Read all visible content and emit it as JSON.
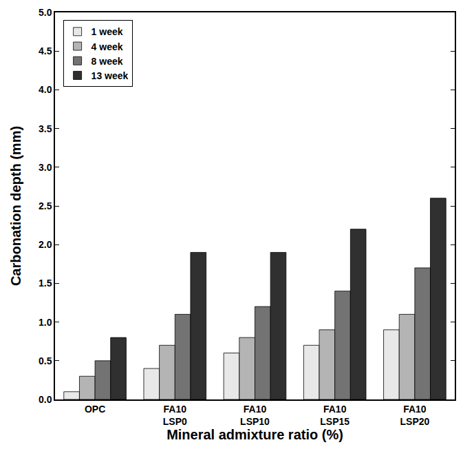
{
  "chart_data": {
    "type": "bar",
    "x_label": "Mineral admixture ratio (%)",
    "y_label": "Carbonation depth (mm)",
    "categories": [
      "OPC",
      "FA10\nLSP0",
      "FA10\nLSP10",
      "FA10\nLSP15",
      "FA10\nLSP20"
    ],
    "series": [
      {
        "name": "1 week",
        "color": "#e8e8e8",
        "values": [
          0.1,
          0.4,
          0.6,
          0.7,
          0.9
        ]
      },
      {
        "name": "4 week",
        "color": "#b4b4b4",
        "values": [
          0.3,
          0.7,
          0.8,
          0.9,
          1.1
        ]
      },
      {
        "name": "8 week",
        "color": "#737373",
        "values": [
          0.5,
          1.1,
          1.2,
          1.4,
          1.7
        ]
      },
      {
        "name": "13 week",
        "color": "#303030",
        "values": [
          0.8,
          1.9,
          1.9,
          2.2,
          2.6
        ]
      }
    ],
    "ylim": [
      0,
      5
    ],
    "yticks": [
      {
        "value": 0,
        "label": "0.0"
      },
      {
        "value": 0.5,
        "label": "0.5"
      },
      {
        "value": 1,
        "label": "1.0"
      },
      {
        "value": 1.5,
        "label": "1.5"
      },
      {
        "value": 2,
        "label": "2.0"
      },
      {
        "value": 2.5,
        "label": "2.5"
      },
      {
        "value": 3,
        "label": "3.0"
      },
      {
        "value": 3.5,
        "label": "3.5"
      },
      {
        "value": 4,
        "label": "4.0"
      },
      {
        "value": 4.5,
        "label": "4.5"
      },
      {
        "value": 5,
        "label": "5.0"
      }
    ],
    "grid": false,
    "legend": "top-left"
  }
}
